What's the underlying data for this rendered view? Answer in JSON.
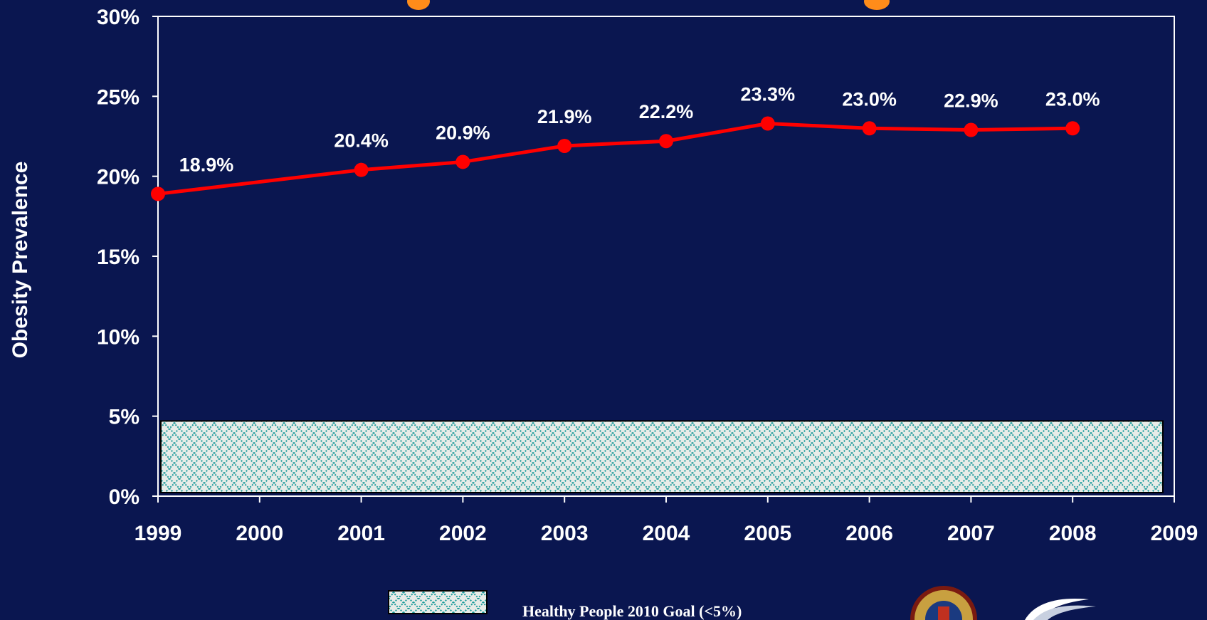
{
  "colors": {
    "background": "#0a1650",
    "line": "#ff0000",
    "title": "#ff8c1a",
    "goal_fill": "#e8ece8",
    "goal_hatch": "#1a9a9a",
    "axis": "#ffffff"
  },
  "chart_data": {
    "type": "line",
    "title": "",
    "xlabel": "",
    "ylabel": "Obesity Prevalence",
    "xlim": [
      1999,
      2009
    ],
    "ylim": [
      0,
      30
    ],
    "xticks": [
      "1999",
      "2000",
      "2001",
      "2002",
      "2003",
      "2004",
      "2005",
      "2006",
      "2007",
      "2008",
      "2009"
    ],
    "yticks": [
      "0%",
      "5%",
      "10%",
      "15%",
      "20%",
      "25%",
      "30%"
    ],
    "grid": false,
    "series": [
      {
        "x": [
          1999,
          2001,
          2002,
          2003,
          2004,
          2005,
          2006,
          2007,
          2008
        ],
        "values": [
          18.9,
          20.4,
          20.9,
          21.9,
          22.2,
          23.3,
          23.0,
          22.9,
          23.0
        ],
        "labels": [
          "18.9%",
          "20.4%",
          "20.9%",
          "21.9%",
          "22.2%",
          "23.3%",
          "23.0%",
          "22.9%",
          "23.0%"
        ]
      }
    ],
    "goal_band": {
      "y_from": 0,
      "y_to": 4.7,
      "label": "Healthy People 2010 Goal (<5%)"
    },
    "legend_position": "bottom-center"
  },
  "logos": [
    {
      "icon": "county-seal-icon"
    },
    {
      "icon": "swoosh-logo-icon"
    }
  ]
}
